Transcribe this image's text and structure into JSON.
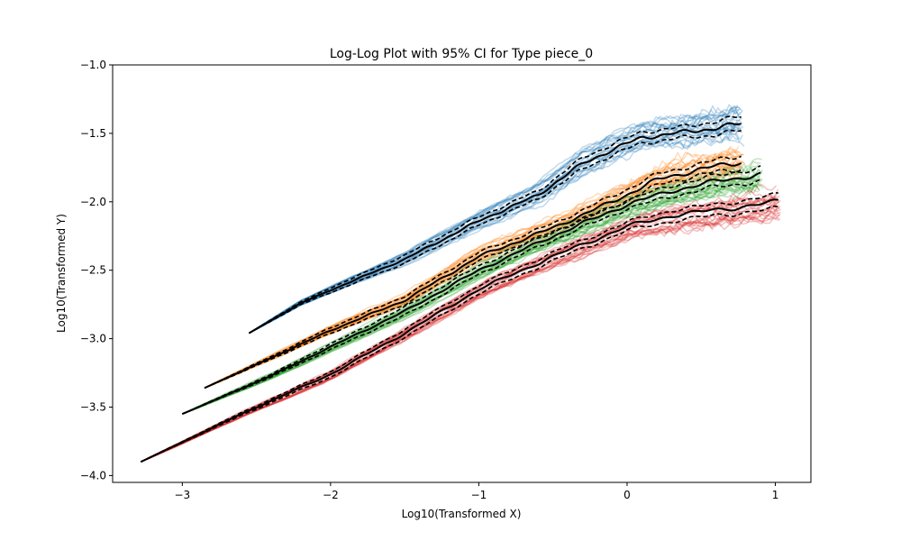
{
  "chart_data": {
    "type": "line",
    "title": "Log-Log Plot with 95% CI for Type piece_0",
    "xlabel": "Log10(Transformed X)",
    "ylabel": "Log10(Transformed Y)",
    "xlim": [
      -3.47,
      1.24
    ],
    "ylim": [
      -4.05,
      -1.0
    ],
    "xticks": [
      -3,
      -2,
      -1,
      0,
      1
    ],
    "xtick_labels": [
      "−3",
      "−2",
      "−1",
      "0",
      "1"
    ],
    "yticks": [
      -4.0,
      -3.5,
      -3.0,
      -2.5,
      -2.0,
      -1.5,
      -1.0
    ],
    "ytick_labels": [
      "−4.0",
      "−3.5",
      "−3.0",
      "−2.5",
      "−2.0",
      "−1.5",
      "−1.0"
    ],
    "grid": false,
    "legend": "none",
    "ci_color": "#000000",
    "series": [
      {
        "color": "#1f77b4",
        "mean": [
          [
            -2.55,
            -2.96
          ],
          [
            -2.2,
            -2.74
          ],
          [
            -1.9,
            -2.6
          ],
          [
            -1.5,
            -2.42
          ],
          [
            -1.0,
            -2.14
          ],
          [
            -0.6,
            -1.95
          ],
          [
            -0.3,
            -1.72
          ],
          [
            -0.1,
            -1.62
          ],
          [
            0.1,
            -1.53
          ],
          [
            0.4,
            -1.49
          ],
          [
            0.6,
            -1.46
          ],
          [
            0.77,
            -1.43
          ]
        ],
        "ci_half_width": [
          0.0,
          0.01,
          0.02,
          0.03,
          0.03,
          0.03,
          0.04,
          0.04,
          0.04,
          0.04,
          0.05,
          0.05
        ]
      },
      {
        "color": "#ff7f0e",
        "mean": [
          [
            -2.85,
            -3.36
          ],
          [
            -2.4,
            -3.14
          ],
          [
            -2.0,
            -2.94
          ],
          [
            -1.5,
            -2.72
          ],
          [
            -1.0,
            -2.4
          ],
          [
            -0.5,
            -2.19
          ],
          [
            -0.1,
            -2.0
          ],
          [
            0.2,
            -1.84
          ],
          [
            0.5,
            -1.76
          ],
          [
            0.77,
            -1.71
          ]
        ],
        "ci_half_width": [
          0.0,
          0.01,
          0.02,
          0.03,
          0.03,
          0.03,
          0.04,
          0.04,
          0.04,
          0.05
        ]
      },
      {
        "color": "#2ca02c",
        "mean": [
          [
            -3.0,
            -3.55
          ],
          [
            -2.4,
            -3.27
          ],
          [
            -2.0,
            -3.06
          ],
          [
            -1.5,
            -2.8
          ],
          [
            -1.0,
            -2.5
          ],
          [
            -0.5,
            -2.25
          ],
          [
            0.0,
            -2.02
          ],
          [
            0.3,
            -1.92
          ],
          [
            0.6,
            -1.85
          ],
          [
            0.9,
            -1.8
          ]
        ],
        "ci_half_width": [
          0.0,
          0.01,
          0.02,
          0.03,
          0.03,
          0.03,
          0.03,
          0.04,
          0.04,
          0.05
        ]
      },
      {
        "color": "#d62728",
        "mean": [
          [
            -3.28,
            -3.9
          ],
          [
            -2.6,
            -3.55
          ],
          [
            -2.0,
            -3.26
          ],
          [
            -1.5,
            -2.96
          ],
          [
            -1.0,
            -2.64
          ],
          [
            -0.5,
            -2.4
          ],
          [
            0.0,
            -2.18
          ],
          [
            0.3,
            -2.1
          ],
          [
            0.6,
            -2.06
          ],
          [
            1.02,
            -2.0
          ]
        ],
        "ci_half_width": [
          0.0,
          0.01,
          0.02,
          0.03,
          0.03,
          0.03,
          0.03,
          0.04,
          0.04,
          0.05
        ]
      }
    ],
    "per_series_trajectories": 25
  }
}
